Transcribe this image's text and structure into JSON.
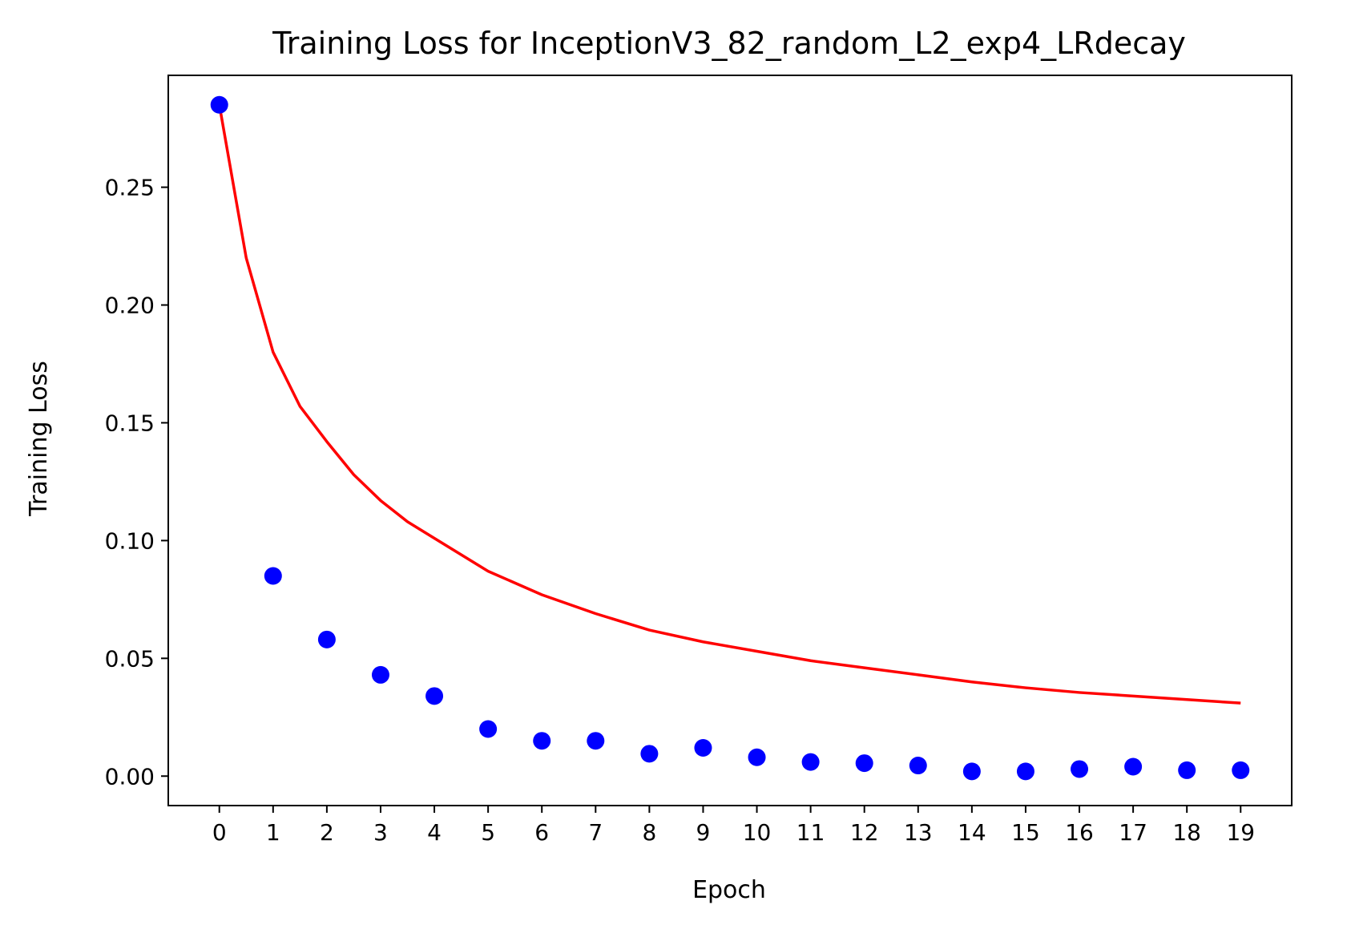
{
  "chart_data": {
    "type": "scatter",
    "title": "Training Loss for InceptionV3_82_random_L2_exp4_LRdecay",
    "xlabel": "Epoch",
    "ylabel": "Training Loss",
    "xlim": [
      -0.95,
      19.95
    ],
    "ylim": [
      -0.0125,
      0.2975
    ],
    "x_ticks": [
      0,
      1,
      2,
      3,
      4,
      5,
      6,
      7,
      8,
      9,
      10,
      11,
      12,
      13,
      14,
      15,
      16,
      17,
      18,
      19
    ],
    "y_ticks": [
      0.0,
      0.05,
      0.1,
      0.15,
      0.2,
      0.25
    ],
    "y_tick_labels": [
      "0.00",
      "0.05",
      "0.10",
      "0.15",
      "0.20",
      "0.25"
    ],
    "grid": false,
    "legend": "none",
    "series": [
      {
        "kind": "scatter",
        "color": "#0000ff",
        "x": [
          0,
          1,
          2,
          3,
          4,
          5,
          6,
          7,
          8,
          9,
          10,
          11,
          12,
          13,
          14,
          15,
          16,
          17,
          18,
          19
        ],
        "y": [
          0.285,
          0.085,
          0.058,
          0.043,
          0.034,
          0.02,
          0.015,
          0.015,
          0.0095,
          0.012,
          0.008,
          0.006,
          0.0055,
          0.0045,
          0.002,
          0.002,
          0.003,
          0.004,
          0.0025,
          0.0025
        ]
      },
      {
        "kind": "line",
        "color": "#ff0000",
        "x": [
          0,
          0.5,
          1,
          1.5,
          2,
          2.5,
          3,
          3.5,
          4,
          5,
          6,
          7,
          8,
          9,
          10,
          11,
          12,
          13,
          14,
          15,
          16,
          17,
          18,
          19
        ],
        "y": [
          0.285,
          0.22,
          0.18,
          0.157,
          0.142,
          0.128,
          0.117,
          0.108,
          0.101,
          0.087,
          0.077,
          0.069,
          0.062,
          0.057,
          0.053,
          0.049,
          0.046,
          0.043,
          0.04,
          0.0375,
          0.0355,
          0.034,
          0.0325,
          0.031
        ]
      }
    ]
  }
}
